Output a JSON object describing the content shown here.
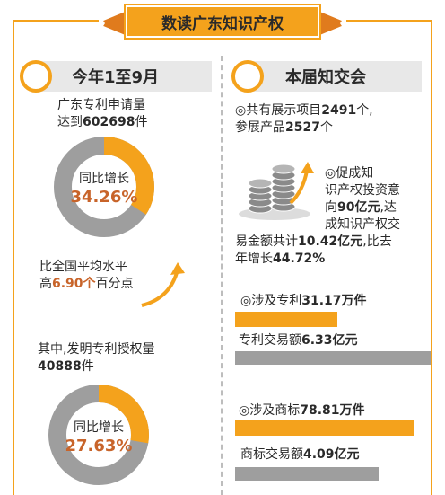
{
  "title": "数读广东知识产权",
  "left": {
    "header": "今年1至9月",
    "patent_apps": {
      "line1": "广东专利申请量",
      "line2_prefix": "达到",
      "line2_num": "602698",
      "line2_suffix": "件"
    },
    "donut1": {
      "label": "同比增长",
      "value": "34.26%",
      "fraction": 0.3426
    },
    "avg": {
      "line1": "比全国平均水平",
      "line2_prefix": "高",
      "line2_num": "6.90个",
      "line2_suffix": "百分点"
    },
    "grants": {
      "line1": "其中,发明专利授权量",
      "line2_num": "40888",
      "line2_suffix": "件"
    },
    "donut2": {
      "label": "同比增长",
      "value": "27.63%",
      "fraction": 0.2763
    }
  },
  "right": {
    "header": "本届知交会",
    "exhibit": {
      "prefix": "◎共有展示项目",
      "projects_num": "2491",
      "mid": "个,",
      "line2_prefix": "参展产品",
      "products_num": "2527",
      "line2_suffix": "个"
    },
    "invest": {
      "l1": "◎促成知",
      "l2": "识产权投资意",
      "l3_prefix": "向",
      "l3_num": "90亿元",
      "l3_suffix": ",达",
      "l4": "成知识产权交",
      "l5_prefix": "易金额共计",
      "l5_num": "10.42亿元",
      "l5_suffix": ",比去",
      "l6_prefix": "年增长",
      "l6_num": "44.72%"
    },
    "patent_items": {
      "label_prefix": "◎涉及专利",
      "label_num": "31.17万件",
      "trade_prefix": "专利交易额",
      "trade_num": "6.33亿元"
    },
    "trademark_items": {
      "label_prefix": "◎涉及商标",
      "label_num": "78.81万件",
      "trade_prefix": "商标交易额",
      "trade_num": "4.09亿元"
    }
  },
  "colors": {
    "accent": "#f4a21c",
    "highlight": "#c8642a",
    "donut_base": "#9e9e9e",
    "bar_gray": "#9e9e9e"
  },
  "icons": [
    "coin-stack-icon",
    "growth-arrow-icon",
    "ring-icon"
  ]
}
